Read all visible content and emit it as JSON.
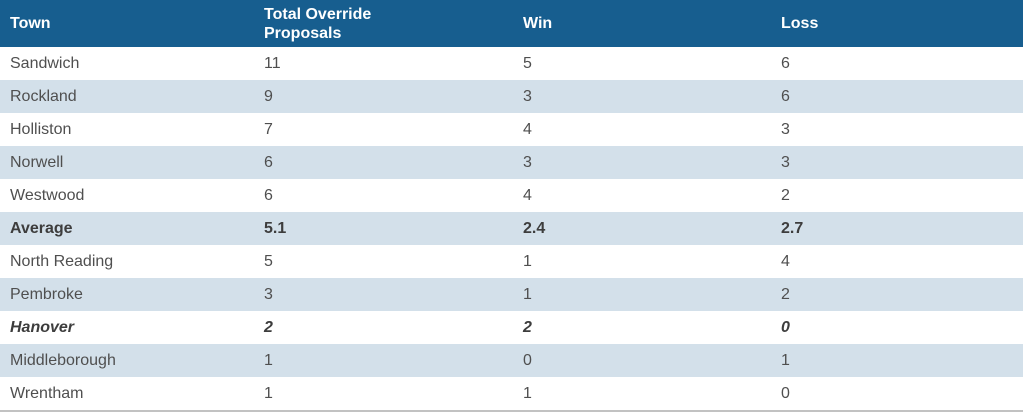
{
  "colors": {
    "header_bg": "#175e8f",
    "header_text": "#ffffff",
    "row_alt_bg": "#d3e0ea",
    "body_text": "#4f4f4f",
    "emphasis_text": "#3d3d3d",
    "bottom_border": "#c2c2c2",
    "page_bg": "#ffffff"
  },
  "chart_data": {
    "type": "table",
    "title": "",
    "columns": [
      "Town",
      "Total Override Proposals",
      "Win",
      "Loss"
    ],
    "column_keys": [
      "town",
      "total",
      "win",
      "loss"
    ],
    "rows": [
      {
        "town": "Sandwich",
        "total": "11",
        "win": "5",
        "loss": "6",
        "emphasis": "normal"
      },
      {
        "town": "Rockland",
        "total": "9",
        "win": "3",
        "loss": "6",
        "emphasis": "normal"
      },
      {
        "town": "Holliston",
        "total": "7",
        "win": "4",
        "loss": "3",
        "emphasis": "normal"
      },
      {
        "town": "Norwell",
        "total": "6",
        "win": "3",
        "loss": "3",
        "emphasis": "normal"
      },
      {
        "town": "Westwood",
        "total": "6",
        "win": "4",
        "loss": "2",
        "emphasis": "normal"
      },
      {
        "town": "Average",
        "total": "5.1",
        "win": "2.4",
        "loss": "2.7",
        "emphasis": "bold"
      },
      {
        "town": "North Reading",
        "total": "5",
        "win": "1",
        "loss": "4",
        "emphasis": "normal"
      },
      {
        "town": "Pembroke",
        "total": "3",
        "win": "1",
        "loss": "2",
        "emphasis": "normal"
      },
      {
        "town": "Hanover",
        "total": "2",
        "win": "2",
        "loss": "0",
        "emphasis": "bold_italic"
      },
      {
        "town": "Middleborough",
        "total": "1",
        "win": "0",
        "loss": "1",
        "emphasis": "normal"
      },
      {
        "town": "Wrentham",
        "total": "1",
        "win": "1",
        "loss": "0",
        "emphasis": "normal"
      }
    ]
  }
}
